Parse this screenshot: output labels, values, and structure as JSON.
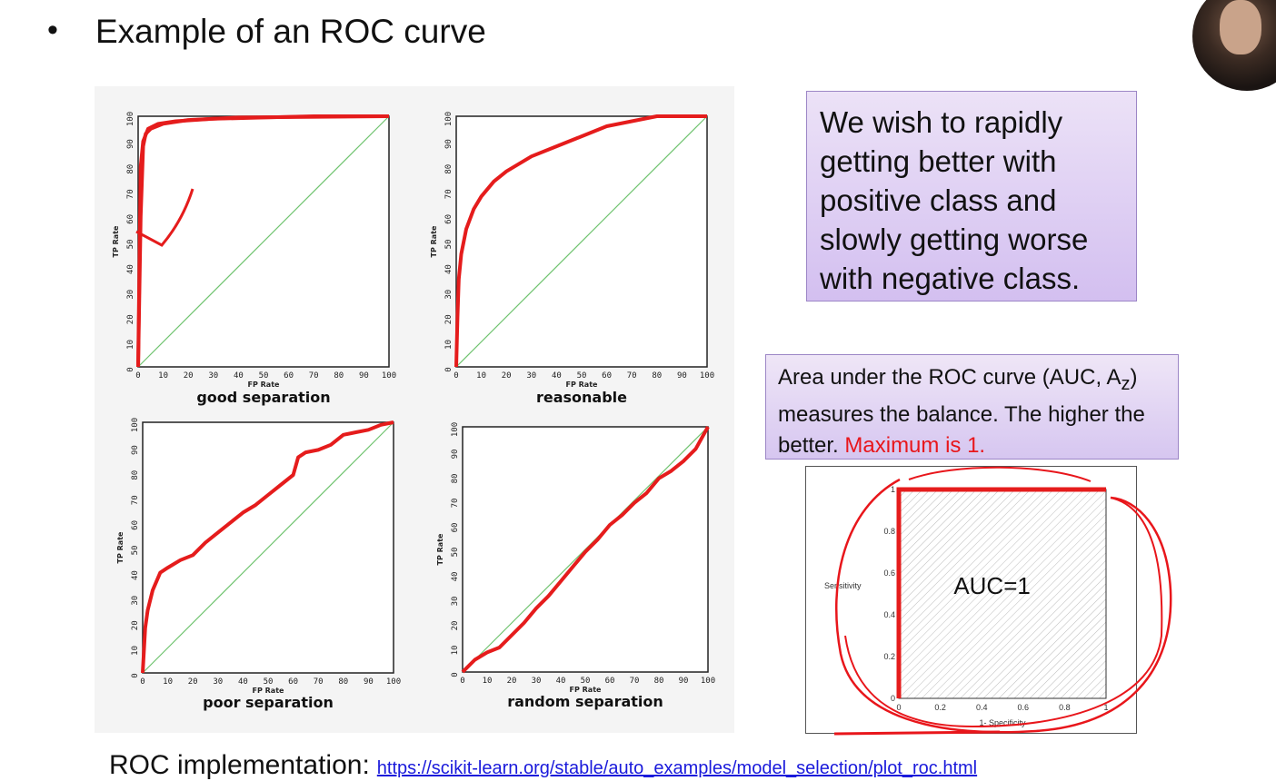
{
  "slide": {
    "bullet": "•",
    "title": "Example of an ROC curve",
    "note_box": "We wish to rapidly getting better with positive class and slowly getting worse with negative class.",
    "auc_box": {
      "text_before": "Area under the ROC curve (AUC, A",
      "subscript": "z",
      "text_after": ") measures the balance. The higher the better. ",
      "highlight": "Maximum is 1."
    },
    "footer_label": "ROC implementation:",
    "footer_link": "https://scikit-learn.org/stable/auto_examples/model_selection/plot_roc.html"
  },
  "colors": {
    "curve": "#e51c1c",
    "diagonal": "#6fc36f",
    "highlight": "#e8161b",
    "link": "#1a1adb"
  },
  "chart_data": [
    {
      "type": "line",
      "title": "good separation",
      "xlabel": "FP Rate",
      "ylabel": "TP Rate",
      "xlim": [
        0,
        100
      ],
      "ylim": [
        0,
        100
      ],
      "ticks": [
        "0",
        "10",
        "20",
        "30",
        "40",
        "50",
        "60",
        "70",
        "80",
        "90",
        "100"
      ],
      "series": [
        {
          "x": [
            0,
            0.5,
            1,
            2,
            4,
            8,
            15,
            30,
            50,
            70,
            100
          ],
          "y": [
            0,
            40,
            80,
            90,
            95,
            97,
            98,
            99,
            99.5,
            100,
            100
          ]
        },
        {
          "x": [
            0,
            1,
            2,
            3,
            5,
            10,
            20,
            40,
            100
          ],
          "y": [
            0,
            60,
            88,
            93,
            95,
            97,
            98.5,
            99.5,
            100
          ]
        }
      ]
    },
    {
      "type": "line",
      "title": "reasonable",
      "xlabel": "FP Rate",
      "ylabel": "TP Rate",
      "xlim": [
        0,
        100
      ],
      "ylim": [
        0,
        100
      ],
      "ticks": [
        "0",
        "10",
        "20",
        "30",
        "40",
        "50",
        "60",
        "70",
        "80",
        "90",
        "100"
      ],
      "series": [
        {
          "x": [
            0,
            0.5,
            1,
            2,
            4,
            7,
            10,
            15,
            20,
            30,
            40,
            50,
            60,
            70,
            80,
            90,
            100
          ],
          "y": [
            0,
            20,
            35,
            45,
            55,
            63,
            68,
            74,
            78,
            84,
            88,
            92,
            96,
            98,
            100,
            100,
            100
          ]
        }
      ]
    },
    {
      "type": "line",
      "title": "poor separation",
      "xlabel": "FP Rate",
      "ylabel": "TP Rate",
      "xlim": [
        0,
        100
      ],
      "ylim": [
        0,
        100
      ],
      "ticks": [
        "0",
        "10",
        "20",
        "30",
        "40",
        "50",
        "60",
        "70",
        "80",
        "90",
        "100"
      ],
      "series": [
        {
          "x": [
            0,
            1,
            2,
            4,
            7,
            10,
            15,
            20,
            25,
            30,
            35,
            40,
            45,
            50,
            55,
            60,
            62,
            65,
            70,
            75,
            80,
            85,
            90,
            95,
            100
          ],
          "y": [
            0,
            18,
            25,
            33,
            40,
            42,
            45,
            47,
            52,
            56,
            60,
            64,
            67,
            71,
            75,
            79,
            86,
            88,
            89,
            91,
            95,
            96,
            97,
            99,
            100
          ]
        }
      ]
    },
    {
      "type": "line",
      "title": "random separation",
      "xlabel": "FP Rate",
      "ylabel": "TP Rate",
      "xlim": [
        0,
        100
      ],
      "ylim": [
        0,
        100
      ],
      "ticks": [
        "0",
        "10",
        "20",
        "30",
        "40",
        "50",
        "60",
        "70",
        "80",
        "90",
        "100"
      ],
      "series": [
        {
          "x": [
            0,
            5,
            10,
            15,
            20,
            25,
            30,
            35,
            40,
            45,
            50,
            55,
            60,
            65,
            70,
            75,
            80,
            85,
            90,
            95,
            100
          ],
          "y": [
            0,
            5,
            8,
            10,
            15,
            20,
            26,
            31,
            37,
            43,
            49,
            54,
            60,
            64,
            69,
            73,
            79,
            82,
            86,
            91,
            100
          ]
        }
      ]
    },
    {
      "type": "area",
      "annotation": "AUC=1",
      "xlabel": "1- Specificity",
      "ylabel": "Sensitivity",
      "xlim": [
        0,
        1
      ],
      "ylim": [
        0,
        1
      ],
      "xticks": [
        "0",
        "0.2",
        "0.4",
        "0.6",
        "0.8",
        "1"
      ],
      "yticks": [
        "0",
        "0.2",
        "0.4",
        "0.6",
        "0.8",
        "1"
      ],
      "series": [
        {
          "x": [
            0,
            0,
            1
          ],
          "y": [
            0,
            1,
            1
          ]
        }
      ]
    }
  ]
}
